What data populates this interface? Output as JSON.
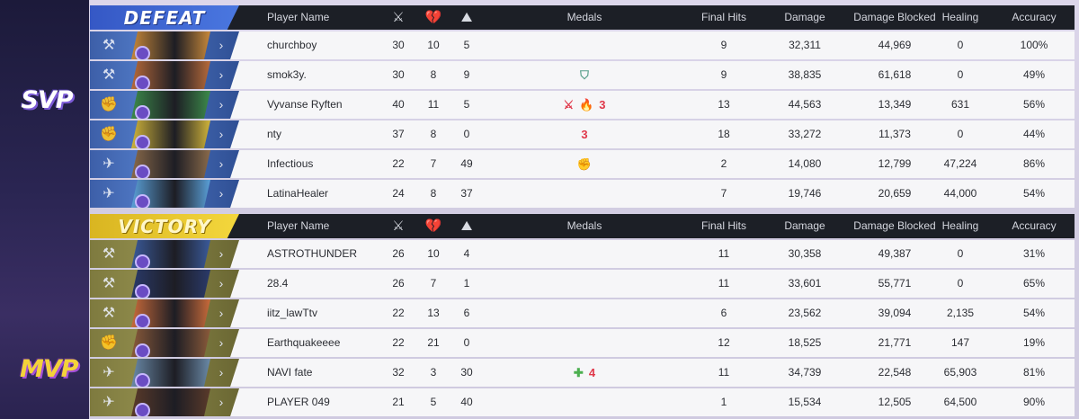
{
  "badges": {
    "defeat_team_badge": "SVP",
    "victory_team_badge": "MVP"
  },
  "headers": {
    "player_name": "Player Name",
    "kills_icon": "crossed-swords-icon",
    "deaths_icon": "broken-heart-icon",
    "assists_icon": "assist-icon",
    "medals": "Medals",
    "final_hits": "Final Hits",
    "damage": "Damage",
    "damage_blocked": "Damage Blocked",
    "healing": "Healing",
    "accuracy": "Accuracy"
  },
  "colors": {
    "defeat_accent": "#4a77e0",
    "victory_accent": "#f4d73d",
    "header_bg": "#1c1f26",
    "medal_red": "#e0384a",
    "medal_green": "#4caf50"
  },
  "teams": {
    "defeat": {
      "result": "DEFEAT",
      "players": [
        {
          "name": "churchboy",
          "kills": "30",
          "deaths": "10",
          "assists": "5",
          "medals": [],
          "final_hits": "9",
          "damage": "32,311",
          "damage_blocked": "44,969",
          "healing": "0",
          "accuracy": "100%",
          "role_icon": "vanguard-icon",
          "hero_color": "#c7883a"
        },
        {
          "name": "smok3y.",
          "kills": "30",
          "deaths": "8",
          "assists": "9",
          "medals": [
            {
              "icon": "shield-medal-icon",
              "glyph": "⛉",
              "color": "#5aa08c"
            }
          ],
          "final_hits": "9",
          "damage": "38,835",
          "damage_blocked": "61,618",
          "healing": "0",
          "accuracy": "49%",
          "role_icon": "vanguard-icon",
          "hero_color": "#b86a3a"
        },
        {
          "name": "Vyvanse Ryften",
          "kills": "40",
          "deaths": "11",
          "assists": "5",
          "medals": [
            {
              "icon": "crossed-swords-medal-icon",
              "glyph": "⚔",
              "color": "#e0384a"
            },
            {
              "icon": "fire-medal-icon",
              "glyph": "🔥",
              "color": "#e0384a"
            },
            {
              "icon": "streak-medal-icon",
              "glyph": "3",
              "color": "#e0384a"
            }
          ],
          "final_hits": "13",
          "damage": "44,563",
          "damage_blocked": "13,349",
          "healing": "631",
          "accuracy": "56%",
          "role_icon": "duelist-icon",
          "hero_color": "#3c8a4a"
        },
        {
          "name": "nty",
          "kills": "37",
          "deaths": "8",
          "assists": "0",
          "medals": [
            {
              "icon": "streak-medal-icon",
              "glyph": "3",
              "color": "#e0384a"
            }
          ],
          "final_hits": "18",
          "damage": "33,272",
          "damage_blocked": "11,373",
          "healing": "0",
          "accuracy": "44%",
          "role_icon": "duelist-icon",
          "hero_color": "#d0b43a"
        },
        {
          "name": "Infectious",
          "kills": "22",
          "deaths": "7",
          "assists": "49",
          "medals": [
            {
              "icon": "fist-medal-icon",
              "glyph": "✊",
              "color": "#c9a23a"
            }
          ],
          "final_hits": "2",
          "damage": "14,080",
          "damage_blocked": "12,799",
          "healing": "47,224",
          "accuracy": "86%",
          "role_icon": "strategist-icon",
          "hero_color": "#8a6a4a"
        },
        {
          "name": "LatinaHealer",
          "kills": "24",
          "deaths": "8",
          "assists": "37",
          "medals": [],
          "final_hits": "7",
          "damage": "19,746",
          "damage_blocked": "20,659",
          "healing": "44,000",
          "accuracy": "54%",
          "role_icon": "strategist-icon",
          "hero_color": "#5aa0d8"
        }
      ]
    },
    "victory": {
      "result": "VICTORY",
      "players": [
        {
          "name": "ASTROTHUNDER",
          "kills": "26",
          "deaths": "10",
          "assists": "4",
          "medals": [],
          "final_hits": "11",
          "damage": "30,358",
          "damage_blocked": "49,387",
          "healing": "0",
          "accuracy": "31%",
          "role_icon": "vanguard-icon",
          "hero_color": "#3a5a9a"
        },
        {
          "name": "28.4",
          "kills": "26",
          "deaths": "7",
          "assists": "1",
          "medals": [],
          "final_hits": "11",
          "damage": "33,601",
          "damage_blocked": "55,771",
          "healing": "0",
          "accuracy": "65%",
          "role_icon": "vanguard-icon",
          "hero_color": "#2a3a6a"
        },
        {
          "name": "iitz_lawTtv",
          "kills": "22",
          "deaths": "13",
          "assists": "6",
          "medals": [],
          "final_hits": "6",
          "damage": "23,562",
          "damage_blocked": "39,094",
          "healing": "2,135",
          "accuracy": "54%",
          "role_icon": "vanguard-icon",
          "hero_color": "#c86a3a"
        },
        {
          "name": "Earthquakeeee",
          "kills": "22",
          "deaths": "21",
          "assists": "0",
          "medals": [],
          "final_hits": "12",
          "damage": "18,525",
          "damage_blocked": "21,771",
          "healing": "147",
          "accuracy": "19%",
          "role_icon": "duelist-icon",
          "hero_color": "#8a5a3a"
        },
        {
          "name": "NAVI fate",
          "kills": "32",
          "deaths": "3",
          "assists": "30",
          "medals": [
            {
              "icon": "plus-medal-icon",
              "glyph": "✚",
              "color": "#4caf50"
            },
            {
              "icon": "streak-medal-icon",
              "glyph": "4",
              "color": "#e0384a"
            }
          ],
          "final_hits": "11",
          "damage": "34,739",
          "damage_blocked": "22,548",
          "healing": "65,903",
          "accuracy": "81%",
          "role_icon": "strategist-icon",
          "hero_color": "#6a8aa8"
        },
        {
          "name": "PLAYER 049",
          "kills": "21",
          "deaths": "5",
          "assists": "40",
          "medals": [],
          "final_hits": "1",
          "damage": "15,534",
          "damage_blocked": "12,505",
          "healing": "64,500",
          "accuracy": "90%",
          "role_icon": "strategist-icon",
          "hero_color": "#5a3a2a"
        }
      ]
    }
  }
}
